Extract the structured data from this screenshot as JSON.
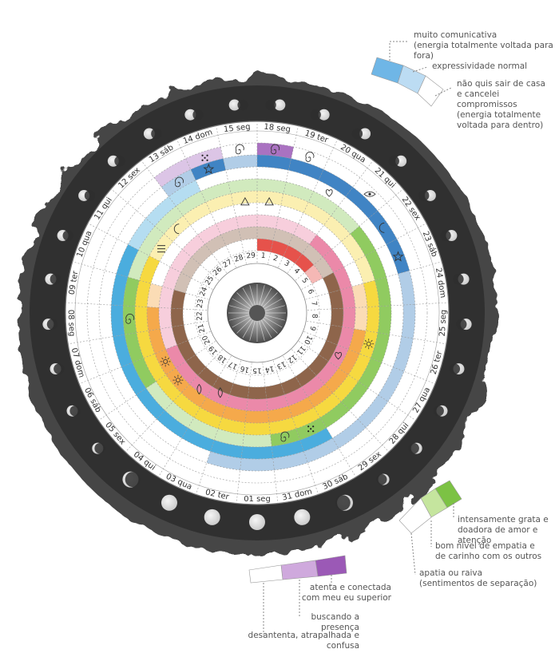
{
  "days": [
    {
      "num": "1",
      "label": "18 seg"
    },
    {
      "num": "2",
      "label": "19 ter"
    },
    {
      "num": "3",
      "label": "20 qua"
    },
    {
      "num": "4",
      "label": "21 qui"
    },
    {
      "num": "5",
      "label": "22 sex"
    },
    {
      "num": "6",
      "label": "23 sáb"
    },
    {
      "num": "7",
      "label": "24 dom"
    },
    {
      "num": "8",
      "label": "25 seg"
    },
    {
      "num": "9",
      "label": "26 ter"
    },
    {
      "num": "10",
      "label": "27 qua"
    },
    {
      "num": "11",
      "label": "28 qui"
    },
    {
      "num": "12",
      "label": "29 sex"
    },
    {
      "num": "13",
      "label": "30 sáb"
    },
    {
      "num": "14",
      "label": "31 dom"
    },
    {
      "num": "15",
      "label": "01 seg"
    },
    {
      "num": "16",
      "label": "02 ter"
    },
    {
      "num": "17",
      "label": "03 qua"
    },
    {
      "num": "18",
      "label": "04 qui"
    },
    {
      "num": "19",
      "label": "05 sex"
    },
    {
      "num": "20",
      "label": "06 sáb"
    },
    {
      "num": "21",
      "label": "07 dom"
    },
    {
      "num": "22",
      "label": "08 seg"
    },
    {
      "num": "23",
      "label": "09 ter"
    },
    {
      "num": "24",
      "label": "10 qua"
    },
    {
      "num": "25",
      "label": "11 qui"
    },
    {
      "num": "26",
      "label": "12 sex"
    },
    {
      "num": "27",
      "label": "13 sáb"
    },
    {
      "num": "28",
      "label": "14 dom"
    },
    {
      "num": "29",
      "label": "15 seg"
    }
  ],
  "legend_top": {
    "colors": [
      "#6fb6e6",
      "#bcdcf3",
      "#ffffff"
    ],
    "items": [
      {
        "text1": "muito comunicativa",
        "text2": "(energia totalmente voltada para fora)"
      },
      {
        "text1": "expressividade normal"
      },
      {
        "text1": "não quis sair de casa",
        "text2": "e cancelei compromissos",
        "text3": "(energia totalmente",
        "text4": "voltada para dentro)"
      }
    ]
  },
  "legend_right": {
    "colors": [
      "#7cc244",
      "#c5e59e",
      "#ffffff"
    ],
    "items": [
      {
        "text1": "intensamente grata e",
        "text2": "doadora de amor e atenção"
      },
      {
        "text1": "bom nível de empatia e",
        "text2": "de carinho com os outros"
      },
      {
        "text1": "apatia ou raiva",
        "text2": "(sentimentos de separação)"
      }
    ]
  },
  "legend_bottom": {
    "colors": [
      "#9b59b6",
      "#cfa9dd",
      "#ffffff"
    ],
    "items": [
      {
        "text1": "atenta e conectada",
        "text2": "com meu eu superior"
      },
      {
        "text1": "buscando a presença"
      },
      {
        "text1": "desantenta, atrapalhada e confusa"
      }
    ]
  },
  "rings": [
    {
      "color": "#9b59b6",
      "cells": [
        2,
        0,
        0,
        0,
        0,
        0,
        0,
        0,
        0,
        0,
        0,
        0,
        0,
        0,
        0,
        0,
        0,
        0,
        0,
        0,
        0,
        0,
        0,
        0,
        0,
        0,
        1,
        1,
        0
      ]
    },
    {
      "color": "#1f6fba",
      "cells": [
        2,
        2,
        2,
        2,
        2,
        2,
        1,
        1,
        1,
        1,
        1,
        1,
        1,
        1,
        1,
        1,
        0,
        0,
        0,
        0,
        0,
        0,
        0,
        0,
        0,
        0,
        1,
        2,
        1
      ]
    },
    {
      "color": "#2b9fd8",
      "cells": [
        0,
        0,
        0,
        0,
        0,
        0,
        0,
        0,
        0,
        0,
        0,
        0,
        2,
        2,
        2,
        2,
        2,
        2,
        2,
        2,
        2,
        2,
        2,
        2,
        1,
        1,
        1,
        0,
        0
      ]
    },
    {
      "color": "#7cc244",
      "cells": [
        1,
        1,
        1,
        1,
        2,
        2,
        2,
        2,
        2,
        2,
        2,
        2,
        2,
        2,
        1,
        1,
        1,
        1,
        1,
        2,
        2,
        2,
        2,
        1,
        1,
        1,
        1,
        1,
        1
      ]
    },
    {
      "color": "#f4d21f",
      "cells": [
        1,
        1,
        1,
        1,
        1,
        1,
        2,
        2,
        2,
        2,
        2,
        2,
        2,
        2,
        2,
        2,
        2,
        2,
        2,
        2,
        2,
        2,
        2,
        2,
        1,
        1,
        1,
        1,
        1
      ]
    },
    {
      "color": "#f39a2b",
      "cells": [
        0,
        0,
        0,
        0,
        0,
        0,
        1,
        1,
        2,
        2,
        2,
        2,
        2,
        2,
        2,
        2,
        2,
        2,
        2,
        2,
        2,
        2,
        1,
        0,
        0,
        0,
        0,
        0,
        0
      ]
    },
    {
      "color": "#e8749a",
      "cells": [
        1,
        1,
        1,
        2,
        2,
        2,
        2,
        2,
        2,
        2,
        2,
        2,
        2,
        2,
        2,
        2,
        2,
        2,
        2,
        2,
        1,
        1,
        1,
        1,
        1,
        1,
        1,
        1,
        1
      ]
    },
    {
      "color": "#7a4a2c",
      "cells": [
        1,
        1,
        1,
        1,
        1,
        2,
        2,
        2,
        2,
        2,
        2,
        2,
        2,
        2,
        2,
        2,
        2,
        2,
        2,
        2,
        2,
        2,
        2,
        1,
        1,
        1,
        1,
        1,
        1
      ]
    },
    {
      "color": "#e2342c",
      "cells": [
        2,
        2,
        2,
        2,
        1,
        0,
        0,
        0,
        0,
        0,
        0,
        0,
        0,
        0,
        0,
        0,
        0,
        0,
        0,
        0,
        0,
        0,
        0,
        0,
        0,
        0,
        0,
        0,
        0
      ]
    }
  ]
}
